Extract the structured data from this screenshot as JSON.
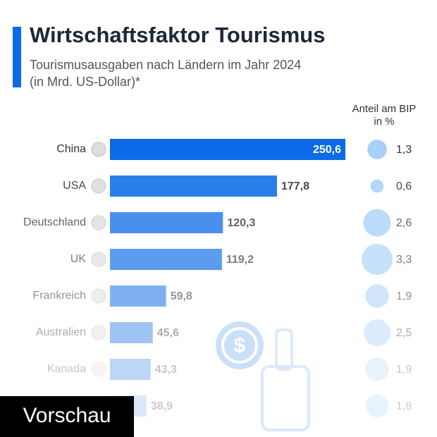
{
  "chart_data": {
    "type": "bar",
    "title": "Wirtschaftsfaktor Tourismus",
    "subtitle": [
      "Tourismusausgaben nach Ländern im Jahr 2024",
      "(in Mrd. US-Dollar)*"
    ],
    "categories": [
      "China",
      "USA",
      "Deutschland",
      "UK",
      "Frankreich",
      "Australien",
      "Kanada",
      null
    ],
    "series": [
      {
        "values": [
          250.6,
          177.8,
          120.3,
          119.2,
          59.8,
          45.6,
          43.3,
          38.9
        ],
        "value_labels": [
          "250,6",
          "177,8",
          "120,3",
          "119,2",
          "59,8",
          "45,6",
          "43,3",
          "38,9"
        ],
        "colors": [
          "#0b6be6",
          "#2a7ee9",
          "#4b8fec",
          "#5d9bee",
          "#7fb1f1",
          "#9fc4f4",
          "#bcd6f7",
          "#dbe8fa"
        ]
      },
      {
        "name": [
          "Anteil am BIP",
          "in %"
        ],
        "type": "bubble",
        "color": "#a8d0f8",
        "values": [
          1.3,
          0.6,
          2.6,
          3.3,
          1.9,
          2.5,
          1.9,
          1.8
        ],
        "value_labels": [
          "1,3",
          "0,6",
          "2,6",
          "3,3",
          "1,9",
          "2,5",
          "1,9",
          "1,8"
        ]
      }
    ],
    "badge": "Vorschau"
  }
}
